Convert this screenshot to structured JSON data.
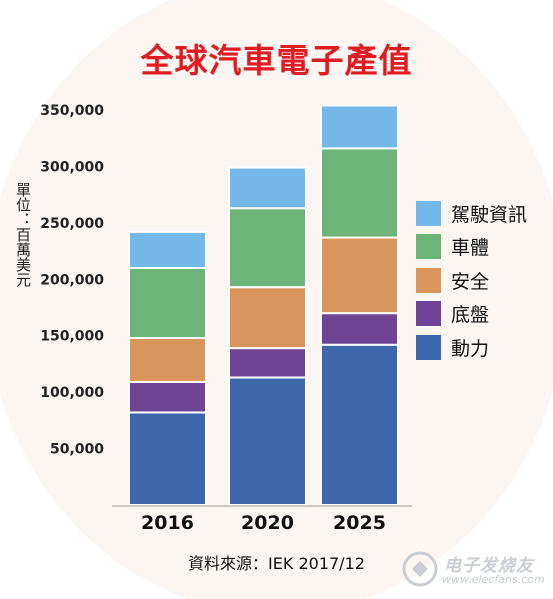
{
  "title": "全球汽車電子產值",
  "ylabel": "單位：百萬美元",
  "source": "資料來源：IEK 2017/12",
  "watermark": {
    "brand": "电子发烧友",
    "url": "www.elecfans.com"
  },
  "colors": {
    "title": "#e01b22",
    "動力": "#3d67ad",
    "底盤": "#6f4496",
    "安全": "#d9955a",
    "車體": "#6db478",
    "駕駛資訊": "#74b8ea",
    "background_circle": "#fbf6f2"
  },
  "legend": [
    "駕駛資訊",
    "車體",
    "安全",
    "底盤",
    "動力"
  ],
  "chart_data": {
    "type": "bar",
    "stacked": true,
    "title": "全球汽車電子產值",
    "ylabel": "單位：百萬美元",
    "xlabel": "",
    "categories": [
      "2016",
      "2020",
      "2025"
    ],
    "ylim": [
      0,
      350000
    ],
    "yticks": [
      "50,000",
      "100,000",
      "150,000",
      "200,000",
      "250,000",
      "300,000",
      "350,000"
    ],
    "ytick_values": [
      50000,
      100000,
      150000,
      200000,
      250000,
      300000,
      350000
    ],
    "grid": false,
    "legend_position": "right",
    "series": [
      {
        "name": "動力",
        "values": [
          82000,
          113000,
          142000
        ]
      },
      {
        "name": "底盤",
        "values": [
          27000,
          26000,
          28000
        ]
      },
      {
        "name": "安全",
        "values": [
          39000,
          54000,
          67000
        ]
      },
      {
        "name": "車體",
        "values": [
          62000,
          70000,
          79000
        ]
      },
      {
        "name": "駕駛資訊",
        "values": [
          32000,
          36000,
          38000
        ]
      }
    ]
  }
}
